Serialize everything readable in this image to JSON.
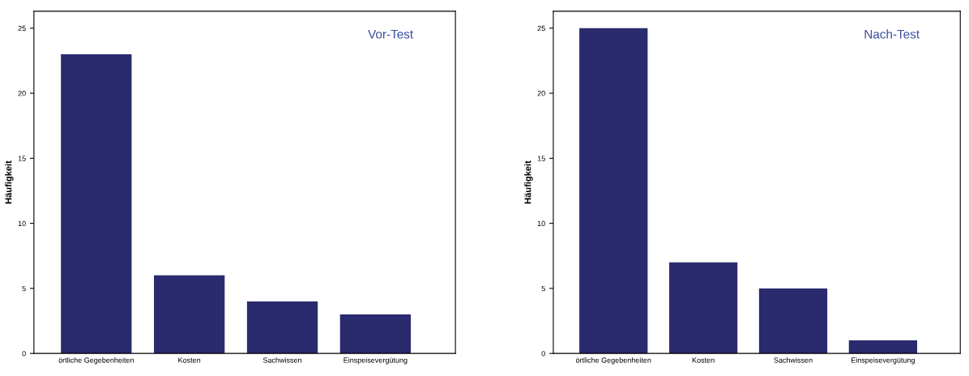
{
  "chart_data": [
    {
      "type": "bar",
      "title": "Vor-Test",
      "ylabel": "Häufigkeit",
      "categories": [
        "örtliche Gegebenheiten",
        "Kosten",
        "Sachwissen",
        "Einspeisevergütung"
      ],
      "values": [
        23,
        6,
        4,
        3
      ],
      "color": "#2a2a6e",
      "ylim": [
        0,
        26.3
      ],
      "yticks": [
        0,
        5,
        10,
        15,
        20,
        25
      ],
      "grid": false,
      "legend": false
    },
    {
      "type": "bar",
      "title": "Nach-Test",
      "ylabel": "Häufigkeit",
      "categories": [
        "örtliche Gegebenheiten",
        "Kosten",
        "Sachwissen",
        "Einspeisevergütung"
      ],
      "values": [
        25,
        7,
        5,
        1
      ],
      "color": "#2a2a6e",
      "ylim": [
        0,
        26.3
      ],
      "yticks": [
        0,
        5,
        10,
        15,
        20,
        25
      ],
      "grid": false,
      "legend": false
    }
  ]
}
